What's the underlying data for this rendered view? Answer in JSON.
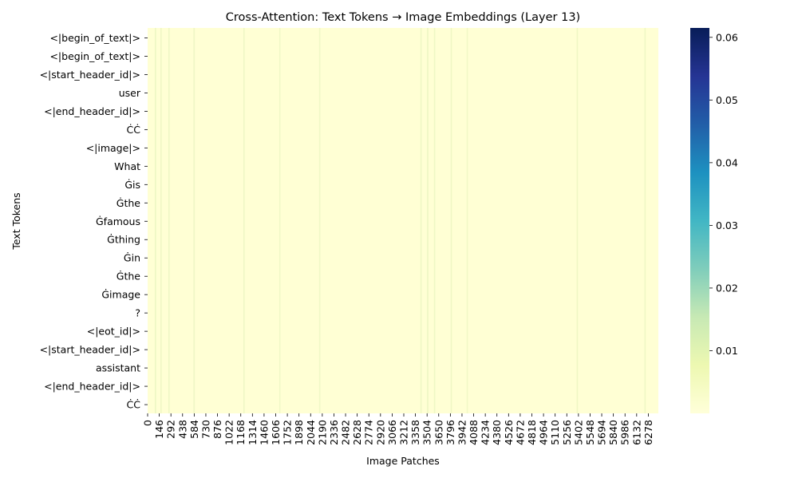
{
  "chart_data": {
    "type": "heatmap",
    "title": "Cross-Attention: Text Tokens → Image Embeddings (Layer 13)",
    "xlabel": "Image Patches",
    "ylabel": "Text Tokens",
    "y_tokens": [
      "<|begin_of_text|>",
      "<|begin_of_text|>",
      "<|start_header_id|>",
      "user",
      "<|end_header_id|>",
      "ĊĊ",
      "<|image|>",
      "What",
      "Ġis",
      "Ġthe",
      "Ġfamous",
      "Ġthing",
      "Ġin",
      "Ġthe",
      "Ġimage",
      "?",
      "<|eot_id|>",
      "<|start_header_id|>",
      "assistant",
      "<|end_header_id|>",
      "ĊĊ"
    ],
    "x_ticks": [
      0,
      146,
      292,
      438,
      584,
      730,
      876,
      1022,
      1168,
      1314,
      1460,
      1606,
      1752,
      1898,
      2044,
      2190,
      2336,
      2482,
      2628,
      2774,
      2920,
      3066,
      3212,
      3358,
      3504,
      3650,
      3796,
      3942,
      4088,
      4234,
      4380,
      4526,
      4672,
      4818,
      4964,
      5110,
      5256,
      5402,
      5548,
      5694,
      5840,
      5986,
      6132,
      6278
    ],
    "x_range": [
      0,
      6404
    ],
    "colorbar": {
      "colormap": "YlGnBu",
      "range": [
        0,
        0.0615
      ],
      "ticks": [
        "0.01",
        "0.02",
        "0.03",
        "0.04",
        "0.05",
        "0.06"
      ]
    },
    "hot_columns": [
      {
        "x": 90,
        "value": 0.004
      },
      {
        "x": 160,
        "value": 0.003
      },
      {
        "x": 260,
        "value": 0.003
      },
      {
        "x": 575,
        "value": 0.003
      },
      {
        "x": 1200,
        "value": 0.003
      },
      {
        "x": 1650,
        "value": 0.002
      },
      {
        "x": 2150,
        "value": 0.002
      },
      {
        "x": 3420,
        "value": 0.003
      },
      {
        "x": 3504,
        "value": 0.004
      },
      {
        "x": 3590,
        "value": 0.003
      },
      {
        "x": 3800,
        "value": 0.003
      },
      {
        "x": 4000,
        "value": 0.002
      },
      {
        "x": 5380,
        "value": 0.003
      },
      {
        "x": 6230,
        "value": 0.003
      }
    ]
  }
}
